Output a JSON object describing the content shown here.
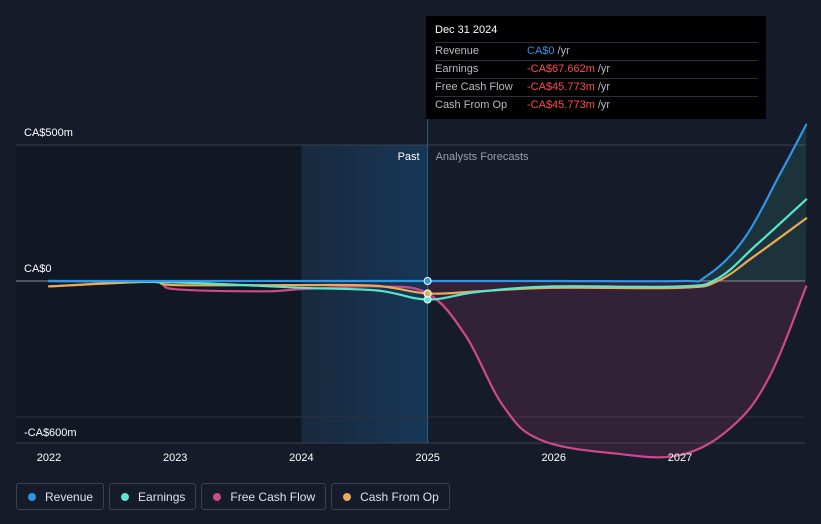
{
  "chart_data": {
    "type": "line",
    "y_unit": "CA$m",
    "ytick_labels": [
      "CA$500m",
      "CA$0",
      "-CA$600m"
    ],
    "yticks": [
      500,
      0,
      -600
    ],
    "ylim": [
      -720,
      600
    ],
    "x_categories": [
      "2022",
      "2023",
      "2024",
      "2025",
      "2026",
      "2027"
    ],
    "xlim": [
      2021.9,
      2028.0
    ],
    "past_label": "Past",
    "forecast_label": "Analysts Forecasts",
    "divider_x": 2025.0,
    "shade_start_x": 2024.0,
    "series": [
      {
        "name": "Revenue",
        "color": "#2f95e5",
        "points": [
          [
            2022.0,
            0
          ],
          [
            2023.0,
            0
          ],
          [
            2024.0,
            0
          ],
          [
            2025.0,
            0
          ],
          [
            2026.0,
            0
          ],
          [
            2027.0,
            0
          ],
          [
            2027.2,
            15
          ],
          [
            2027.5,
            150
          ],
          [
            2027.8,
            400
          ],
          [
            2028.0,
            575
          ]
        ]
      },
      {
        "name": "Earnings",
        "color": "#58e6cf",
        "points": [
          [
            2022.0,
            0
          ],
          [
            2023.0,
            -5
          ],
          [
            2024.0,
            -25
          ],
          [
            2024.6,
            -35
          ],
          [
            2025.0,
            -68
          ],
          [
            2025.4,
            -40
          ],
          [
            2026.0,
            -20
          ],
          [
            2027.0,
            -20
          ],
          [
            2027.3,
            10
          ],
          [
            2027.6,
            130
          ],
          [
            2028.0,
            300
          ]
        ]
      },
      {
        "name": "Free Cash Flow",
        "color": "#cc4a8c",
        "points": [
          [
            2022.0,
            -20
          ],
          [
            2022.8,
            -3
          ],
          [
            2023.0,
            -30
          ],
          [
            2023.7,
            -38
          ],
          [
            2024.0,
            -30
          ],
          [
            2024.6,
            -20
          ],
          [
            2025.0,
            -46
          ],
          [
            2025.3,
            -200
          ],
          [
            2025.6,
            -460
          ],
          [
            2025.9,
            -585
          ],
          [
            2026.5,
            -635
          ],
          [
            2027.0,
            -640
          ],
          [
            2027.4,
            -540
          ],
          [
            2027.7,
            -360
          ],
          [
            2028.0,
            -20
          ]
        ]
      },
      {
        "name": "Cash From Op",
        "color": "#e8a95a",
        "points": [
          [
            2022.0,
            -20
          ],
          [
            2022.8,
            -3
          ],
          [
            2023.0,
            -15
          ],
          [
            2024.0,
            -15
          ],
          [
            2024.6,
            -18
          ],
          [
            2025.0,
            -46
          ],
          [
            2025.4,
            -38
          ],
          [
            2026.0,
            -25
          ],
          [
            2027.0,
            -25
          ],
          [
            2027.3,
            0
          ],
          [
            2027.6,
            95
          ],
          [
            2028.0,
            230
          ]
        ]
      }
    ]
  },
  "tooltip": {
    "date": "Dec 31 2024",
    "rows": [
      {
        "label": "Revenue",
        "value": "CA$0",
        "unit": "/yr",
        "color": "#2f95e5"
      },
      {
        "label": "Earnings",
        "value": "-CA$67.662m",
        "unit": "/yr",
        "color": "#ff4a4a"
      },
      {
        "label": "Free Cash Flow",
        "value": "-CA$45.773m",
        "unit": "/yr",
        "color": "#ff4a4a"
      },
      {
        "label": "Cash From Op",
        "value": "-CA$45.773m",
        "unit": "/yr",
        "color": "#ff4a4a"
      }
    ]
  },
  "legend": [
    {
      "label": "Revenue",
      "color": "#2f95e5"
    },
    {
      "label": "Earnings",
      "color": "#58e6cf"
    },
    {
      "label": "Free Cash Flow",
      "color": "#cc4a8c"
    },
    {
      "label": "Cash From Op",
      "color": "#e8a95a"
    }
  ]
}
